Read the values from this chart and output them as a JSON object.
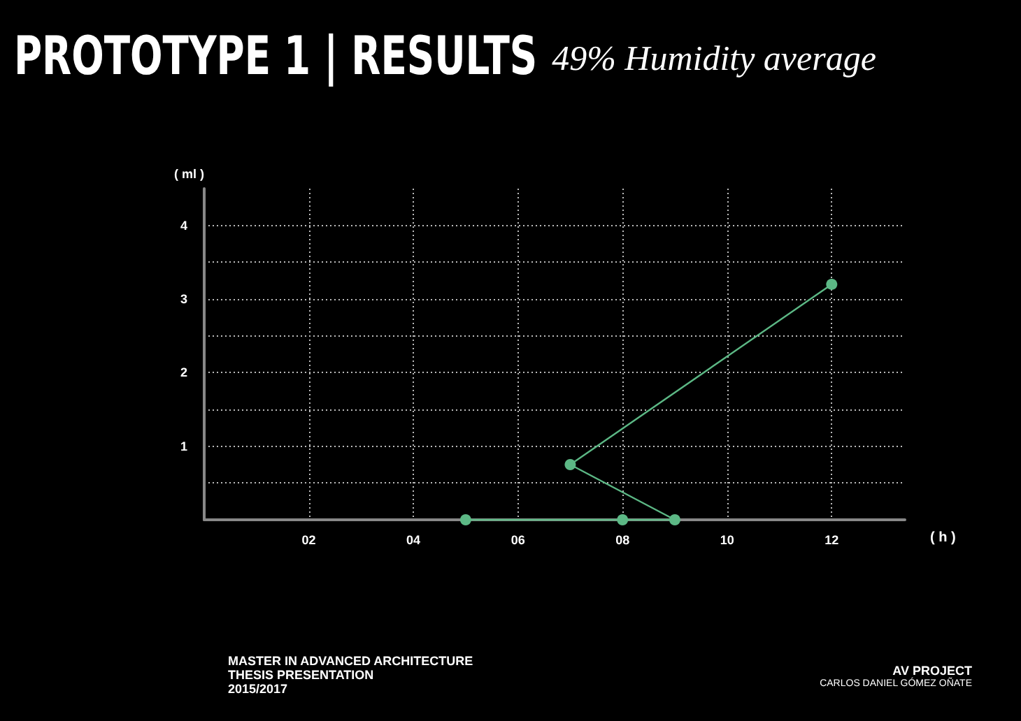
{
  "chart_data": {
    "type": "line",
    "title": "PROTOTYPE 1 | RESULTS",
    "subtitle": "49% Humidity average",
    "xlabel": "( h )",
    "ylabel": "( ml )",
    "x": [
      5,
      8,
      9,
      7,
      12
    ],
    "series": [
      {
        "color": "#5cb885",
        "values": [
          0,
          0,
          0,
          0.75,
          3.2
        ]
      }
    ],
    "xlim": [
      0,
      13.4
    ],
    "ylim": [
      0,
      4.5
    ],
    "xticks": [
      {
        "value": 2,
        "label": "02"
      },
      {
        "value": 4,
        "label": "04"
      },
      {
        "value": 6,
        "label": "06"
      },
      {
        "value": 8,
        "label": "08"
      },
      {
        "value": 10,
        "label": "10"
      },
      {
        "value": 12,
        "label": "12"
      }
    ],
    "yticks": [
      {
        "value": 0.5,
        "label": null
      },
      1,
      {
        "value": 1.5,
        "label": null
      },
      2,
      {
        "value": 2.5,
        "label": null
      },
      3,
      {
        "value": 3.5,
        "label": null
      },
      4
    ],
    "grid": true,
    "marker": "circle",
    "line_style": "solid",
    "annotations": [
      "MASTER IN ADVANCED ARCHITECTURE",
      "THESIS PRESENTATION",
      "2015/2017",
      "AV PROJECT",
      "CARLOS DANIEL GÓMEZ OÑATE"
    ]
  }
}
